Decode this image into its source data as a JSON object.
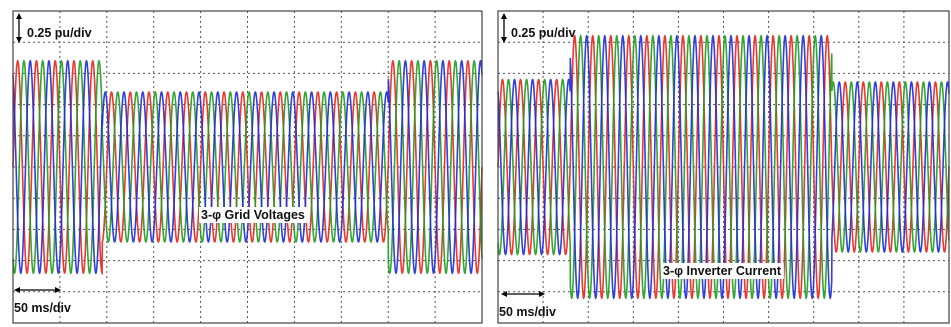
{
  "chart_data": [
    {
      "type": "line",
      "title": "3-φ Grid Voltages",
      "scale_labels": {
        "vertical": "0.25 pu/div",
        "horizontal": "50 ms/div"
      },
      "x_unit": "ms",
      "y_unit": "pu",
      "xlim": [
        0,
        500
      ],
      "ylim": [
        -1.25,
        1.25
      ],
      "grid": true,
      "phase_colors": [
        "#e8231c",
        "#1f9b1f",
        "#1d2bd6"
      ],
      "frequency_hz": 50,
      "amplitude_segments": [
        {
          "x_start": 0,
          "x_end": 95,
          "amplitude": 0.85
        },
        {
          "x_start": 95,
          "x_end": 400,
          "amplitude": 0.6
        },
        {
          "x_start": 400,
          "x_end": 500,
          "amplitude": 0.85
        }
      ]
    },
    {
      "type": "line",
      "title": "3-φ Inverter Current",
      "scale_labels": {
        "vertical": "0.25 pu/div",
        "horizontal": "50 ms/div"
      },
      "x_unit": "ms",
      "y_unit": "pu",
      "xlim": [
        0,
        500
      ],
      "ylim": [
        -1.25,
        1.25
      ],
      "grid": true,
      "phase_colors": [
        "#e8231c",
        "#1f9b1f",
        "#1d2bd6"
      ],
      "frequency_hz": 50,
      "amplitude_segments": [
        {
          "x_start": 0,
          "x_end": 80,
          "amplitude": 0.7
        },
        {
          "x_start": 80,
          "x_end": 370,
          "amplitude": 1.05
        },
        {
          "x_start": 370,
          "x_end": 500,
          "amplitude": 0.68
        }
      ]
    }
  ]
}
